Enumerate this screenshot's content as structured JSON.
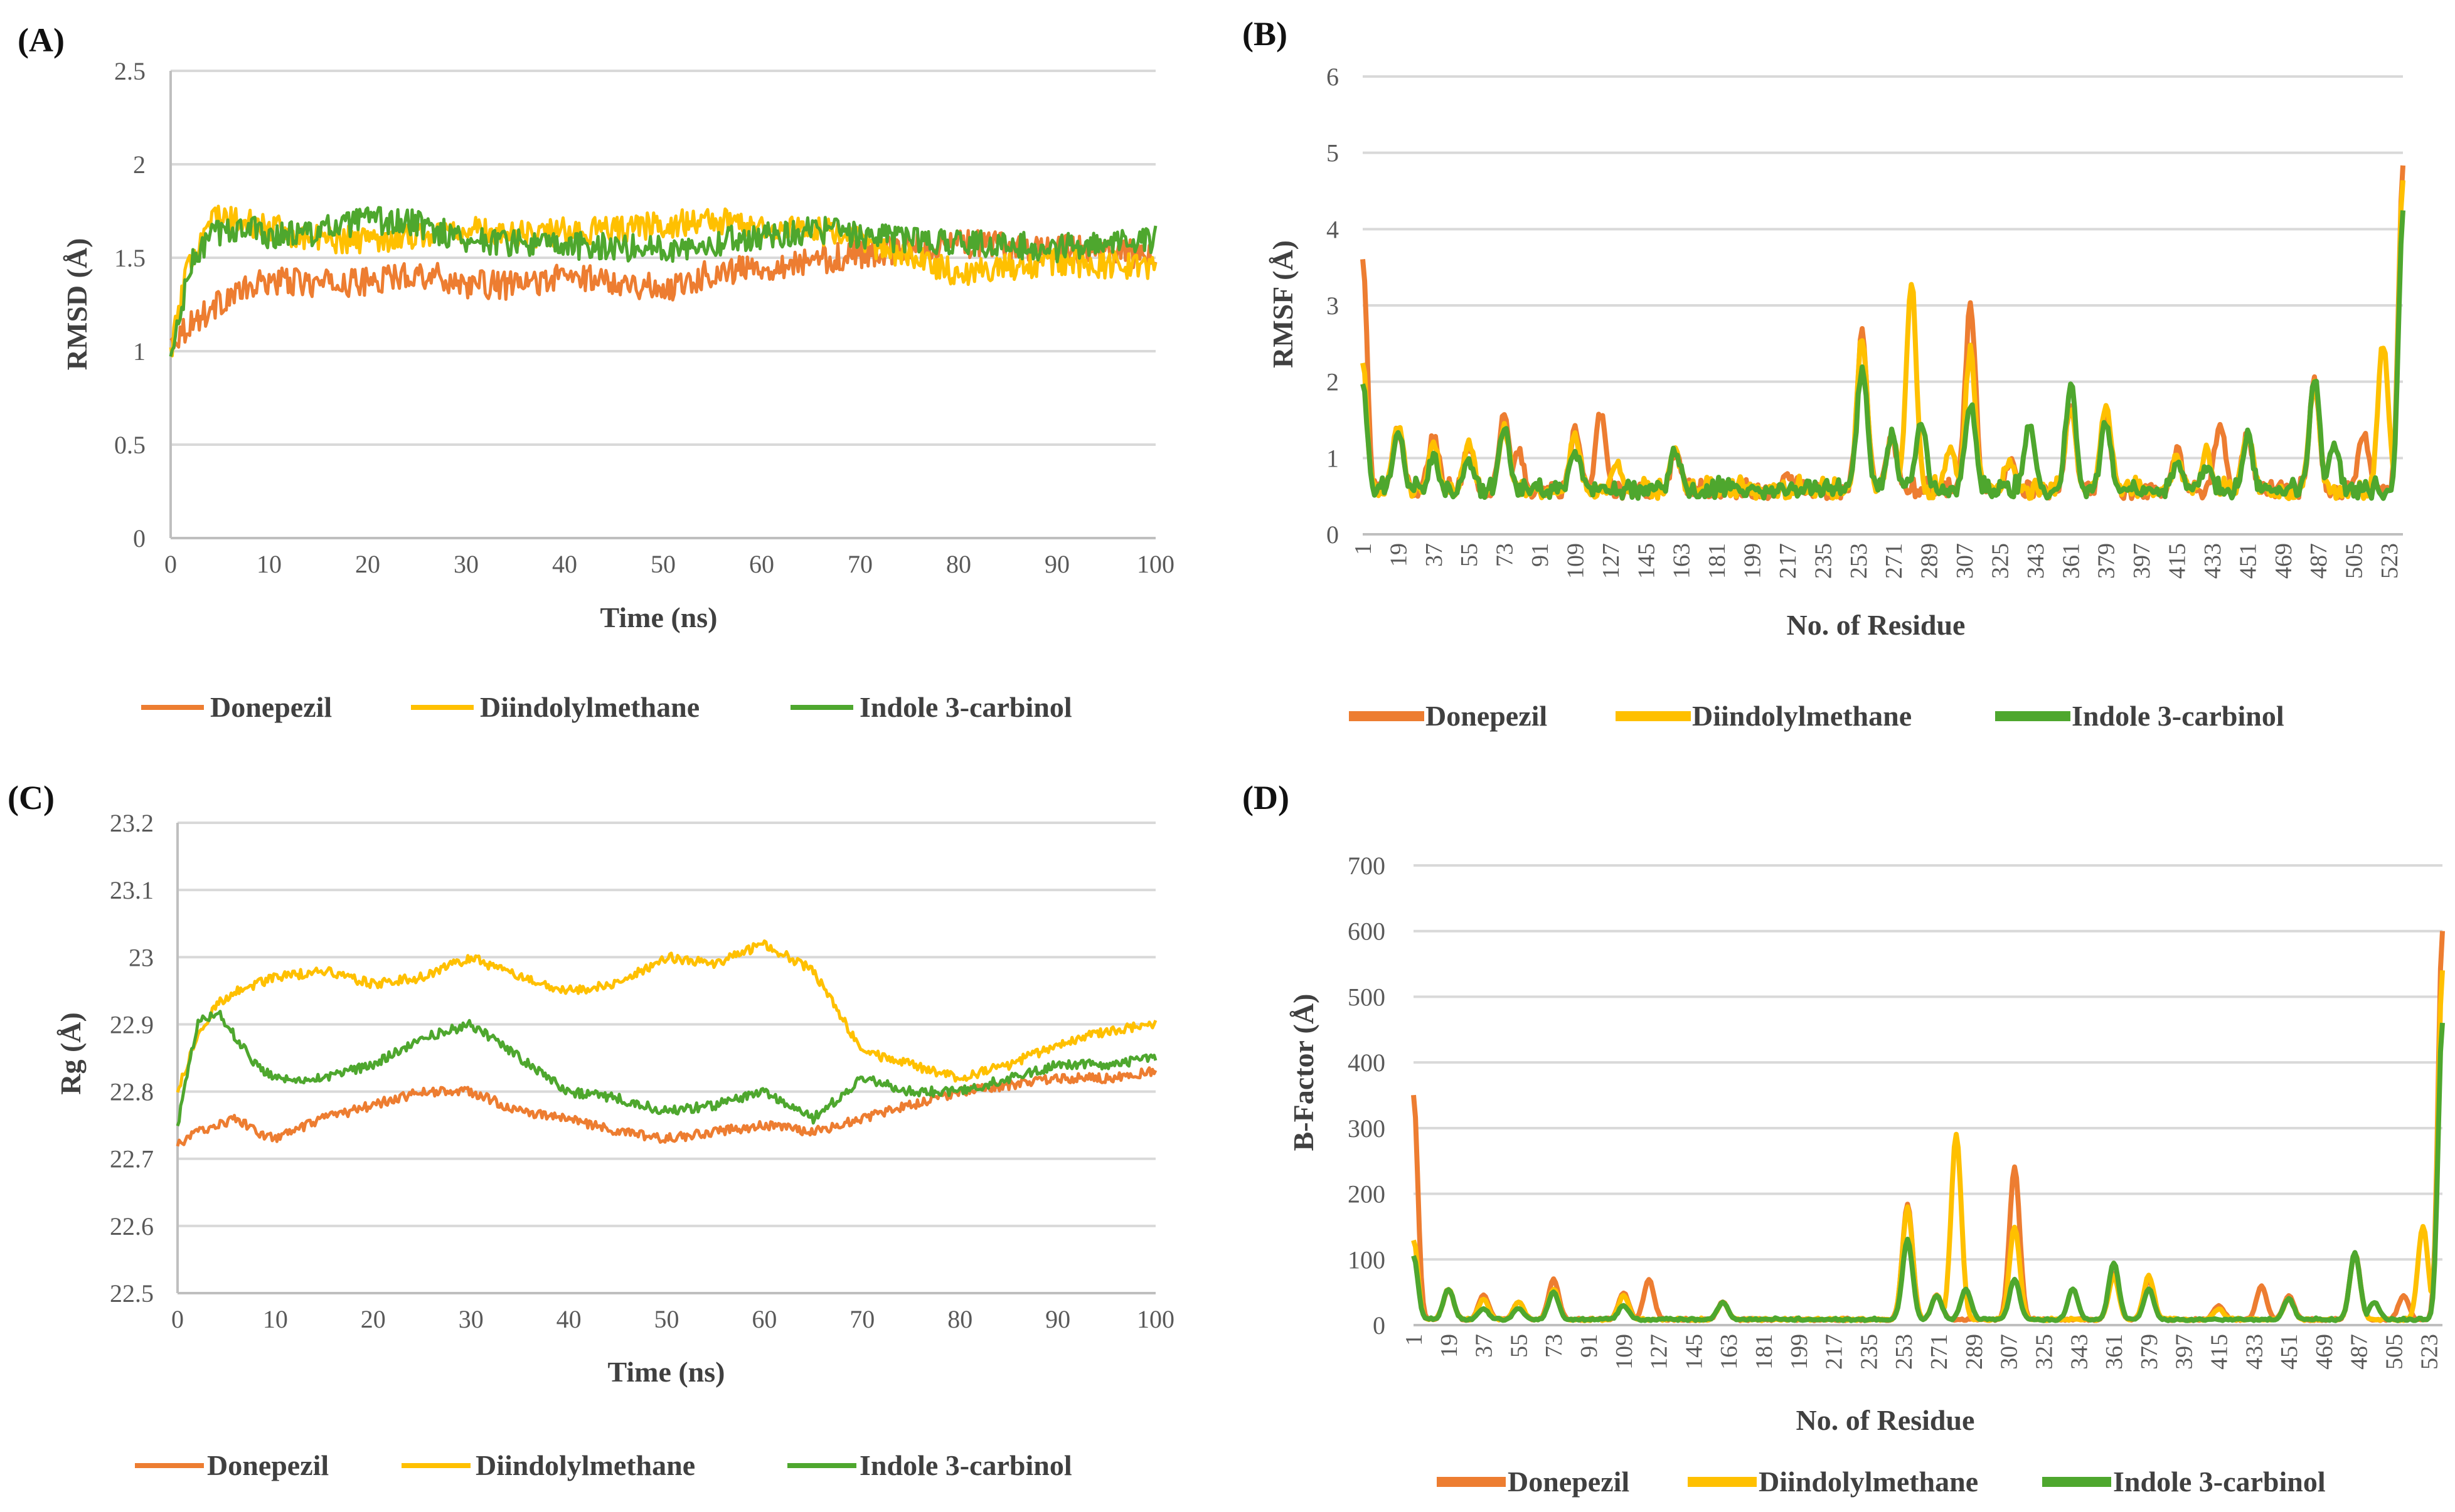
{
  "colors": {
    "donepezil": "#ED7D31",
    "diindolylmethane": "#FFC000",
    "indole3carbinol": "#4EA72E"
  },
  "legend": [
    "Donepezil",
    "Diindolylmethane",
    "Indole 3-carbinol"
  ],
  "chart_data": [
    {
      "panel": "(A)",
      "type": "line",
      "xlabel": "Time (ns)",
      "ylabel": "RMSD (Å)",
      "xlim": [
        0,
        100
      ],
      "ylim": [
        0,
        2.5
      ],
      "x_ticks": [
        "0",
        "10",
        "20",
        "30",
        "40",
        "50",
        "60",
        "70",
        "80",
        "90",
        "100"
      ],
      "y_ticks": [
        "0",
        "0.5",
        "1",
        "1.5",
        "2",
        "2.5"
      ],
      "x": [
        0,
        2,
        4,
        6,
        8,
        10,
        15,
        20,
        25,
        30,
        35,
        40,
        45,
        50,
        55,
        60,
        65,
        70,
        75,
        80,
        85,
        90,
        95,
        100
      ],
      "series": [
        {
          "name": "Donepezil",
          "values": [
            1.05,
            1.15,
            1.22,
            1.3,
            1.33,
            1.38,
            1.36,
            1.37,
            1.42,
            1.36,
            1.35,
            1.4,
            1.38,
            1.33,
            1.42,
            1.45,
            1.48,
            1.52,
            1.55,
            1.58,
            1.56,
            1.55,
            1.54,
            1.5
          ]
        },
        {
          "name": "Diindolylmethane",
          "values": [
            1.0,
            1.5,
            1.72,
            1.7,
            1.68,
            1.66,
            1.6,
            1.6,
            1.62,
            1.65,
            1.62,
            1.64,
            1.65,
            1.68,
            1.7,
            1.67,
            1.65,
            1.6,
            1.5,
            1.42,
            1.45,
            1.48,
            1.46,
            1.45
          ]
        },
        {
          "name": "Indole 3-carbinol",
          "values": [
            0.95,
            1.45,
            1.62,
            1.65,
            1.66,
            1.62,
            1.64,
            1.7,
            1.68,
            1.6,
            1.58,
            1.56,
            1.56,
            1.55,
            1.58,
            1.62,
            1.65,
            1.62,
            1.6,
            1.58,
            1.57,
            1.55,
            1.58,
            1.6
          ]
        }
      ]
    },
    {
      "panel": "(B)",
      "type": "line",
      "xlabel": "No. of Residue",
      "ylabel": "RMSF (Å)",
      "xlim": [
        1,
        530
      ],
      "ylim": [
        0,
        6
      ],
      "x_ticks": [
        "1",
        "19",
        "37",
        "55",
        "73",
        "91",
        "109",
        "127",
        "145",
        "163",
        "181",
        "199",
        "217",
        "235",
        "253",
        "271",
        "289",
        "307",
        "325",
        "343",
        "361",
        "379",
        "397",
        "415",
        "433",
        "451",
        "469",
        "487",
        "505",
        "523"
      ],
      "y_ticks": [
        "0",
        "1",
        "2",
        "3",
        "4",
        "5",
        "6"
      ],
      "baseline": 0.55,
      "series": [
        {
          "name": "Donepezil",
          "peaks": [
            [
              1,
              3.65
            ],
            [
              19,
              1.4
            ],
            [
              37,
              1.3
            ],
            [
              55,
              1.15
            ],
            [
              73,
              1.6
            ],
            [
              80,
              1.1
            ],
            [
              109,
              1.35
            ],
            [
              122,
              1.6
            ],
            [
              160,
              1.05
            ],
            [
              217,
              0.75
            ],
            [
              255,
              2.65
            ],
            [
              270,
              1.3
            ],
            [
              310,
              3.0
            ],
            [
              330,
              0.95
            ],
            [
              361,
              1.7
            ],
            [
              379,
              1.5
            ],
            [
              415,
              1.1
            ],
            [
              437,
              1.5
            ],
            [
              451,
              1.3
            ],
            [
              485,
              2.0
            ],
            [
              510,
              1.3
            ],
            [
              530,
              4.8
            ]
          ]
        },
        {
          "name": "Diindolylmethane",
          "peaks": [
            [
              1,
              2.2
            ],
            [
              19,
              1.45
            ],
            [
              37,
              1.2
            ],
            [
              55,
              1.2
            ],
            [
              73,
              1.4
            ],
            [
              109,
              1.3
            ],
            [
              130,
              0.95
            ],
            [
              160,
              1.1
            ],
            [
              255,
              2.6
            ],
            [
              270,
              1.3
            ],
            [
              280,
              3.3
            ],
            [
              300,
              1.1
            ],
            [
              310,
              2.4
            ],
            [
              330,
              1.0
            ],
            [
              361,
              1.7
            ],
            [
              379,
              1.7
            ],
            [
              415,
              1.0
            ],
            [
              430,
              1.1
            ],
            [
              451,
              1.3
            ],
            [
              485,
              2.0
            ],
            [
              520,
              2.5
            ],
            [
              530,
              4.6
            ]
          ]
        },
        {
          "name": "Indole 3-carbinol",
          "peaks": [
            [
              1,
              2.0
            ],
            [
              19,
              1.4
            ],
            [
              37,
              1.0
            ],
            [
              55,
              0.95
            ],
            [
              73,
              1.4
            ],
            [
              109,
              1.1
            ],
            [
              160,
              1.1
            ],
            [
              255,
              2.2
            ],
            [
              270,
              1.3
            ],
            [
              285,
              1.5
            ],
            [
              310,
              1.7
            ],
            [
              340,
              1.4
            ],
            [
              361,
              1.95
            ],
            [
              379,
              1.5
            ],
            [
              415,
              0.9
            ],
            [
              430,
              0.9
            ],
            [
              451,
              1.3
            ],
            [
              485,
              2.05
            ],
            [
              495,
              1.2
            ],
            [
              530,
              4.2
            ]
          ]
        }
      ]
    },
    {
      "panel": "(C)",
      "type": "line",
      "xlabel": "Time (ns)",
      "ylabel": "Rg (Å)",
      "xlim": [
        0,
        100
      ],
      "ylim": [
        22.5,
        23.2
      ],
      "x_ticks": [
        "0",
        "10",
        "20",
        "30",
        "40",
        "50",
        "60",
        "70",
        "80",
        "90",
        "100"
      ],
      "y_ticks": [
        "22.5",
        "22.6",
        "22.7",
        "22.8",
        "22.9",
        "23",
        "23.1",
        "23.2"
      ],
      "x": [
        0,
        2,
        4,
        6,
        8,
        10,
        15,
        20,
        25,
        30,
        35,
        40,
        45,
        50,
        55,
        60,
        65,
        70,
        75,
        80,
        85,
        90,
        95,
        100
      ],
      "series": [
        {
          "name": "Donepezil",
          "values": [
            22.72,
            22.74,
            22.75,
            22.76,
            22.74,
            22.73,
            22.76,
            22.78,
            22.8,
            22.8,
            22.77,
            22.76,
            22.74,
            22.73,
            22.74,
            22.75,
            22.74,
            22.76,
            22.78,
            22.8,
            22.81,
            22.82,
            22.82,
            22.83
          ]
        },
        {
          "name": "Diindolylmethane",
          "values": [
            22.8,
            22.88,
            22.93,
            22.95,
            22.96,
            22.97,
            22.98,
            22.96,
            22.97,
            23.0,
            22.97,
            22.95,
            22.96,
            23.0,
            22.99,
            23.02,
            22.98,
            22.86,
            22.84,
            22.82,
            22.84,
            22.87,
            22.89,
            22.9
          ]
        },
        {
          "name": "Indole 3-carbinol",
          "values": [
            22.75,
            22.9,
            22.92,
            22.88,
            22.84,
            22.82,
            22.82,
            22.84,
            22.88,
            22.9,
            22.85,
            22.8,
            22.79,
            22.77,
            22.78,
            22.8,
            22.76,
            22.82,
            22.8,
            22.8,
            22.82,
            22.84,
            22.84,
            22.85
          ]
        }
      ]
    },
    {
      "panel": "(D)",
      "type": "line",
      "xlabel": "No. of Residue",
      "ylabel": "B-Factor (Å)",
      "xlim": [
        1,
        530
      ],
      "ylim": [
        0,
        700
      ],
      "x_ticks": [
        "1",
        "19",
        "37",
        "55",
        "73",
        "91",
        "109",
        "127",
        "145",
        "163",
        "181",
        "199",
        "217",
        "235",
        "253",
        "271",
        "289",
        "307",
        "325",
        "343",
        "361",
        "379",
        "397",
        "415",
        "433",
        "451",
        "469",
        "487",
        "505",
        "523"
      ],
      "y_ticks": [
        "0",
        "100",
        "200",
        "300",
        "400",
        "500",
        "600",
        "700"
      ],
      "baseline": 8,
      "series": [
        {
          "name": "Donepezil",
          "peaks": [
            [
              1,
              350
            ],
            [
              19,
              55
            ],
            [
              37,
              45
            ],
            [
              55,
              35
            ],
            [
              73,
              70
            ],
            [
              109,
              50
            ],
            [
              122,
              70
            ],
            [
              160,
              35
            ],
            [
              255,
              185
            ],
            [
              270,
              45
            ],
            [
              310,
              240
            ],
            [
              361,
              80
            ],
            [
              379,
              70
            ],
            [
              415,
              30
            ],
            [
              437,
              60
            ],
            [
              451,
              45
            ],
            [
              485,
              110
            ],
            [
              510,
              45
            ],
            [
              530,
              600
            ]
          ]
        },
        {
          "name": "Diindolylmethane",
          "peaks": [
            [
              1,
              130
            ],
            [
              19,
              55
            ],
            [
              37,
              40
            ],
            [
              55,
              35
            ],
            [
              73,
              55
            ],
            [
              109,
              45
            ],
            [
              160,
              35
            ],
            [
              255,
              180
            ],
            [
              270,
              45
            ],
            [
              280,
              290
            ],
            [
              310,
              150
            ],
            [
              361,
              75
            ],
            [
              379,
              75
            ],
            [
              415,
              25
            ],
            [
              451,
              40
            ],
            [
              485,
              110
            ],
            [
              520,
              150
            ],
            [
              530,
              540
            ]
          ]
        },
        {
          "name": "Indole 3-carbinol",
          "peaks": [
            [
              1,
              105
            ],
            [
              19,
              55
            ],
            [
              37,
              25
            ],
            [
              55,
              25
            ],
            [
              73,
              50
            ],
            [
              109,
              30
            ],
            [
              160,
              35
            ],
            [
              255,
              130
            ],
            [
              270,
              45
            ],
            [
              285,
              55
            ],
            [
              310,
              70
            ],
            [
              340,
              55
            ],
            [
              361,
              95
            ],
            [
              379,
              55
            ],
            [
              451,
              40
            ],
            [
              485,
              110
            ],
            [
              495,
              35
            ],
            [
              530,
              460
            ]
          ]
        }
      ]
    }
  ]
}
